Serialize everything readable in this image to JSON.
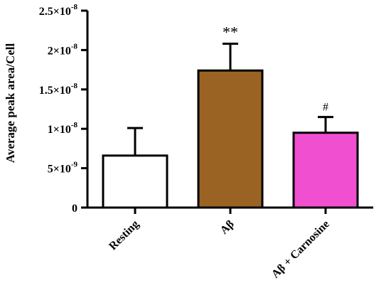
{
  "chart_data": {
    "type": "bar",
    "title": "",
    "xlabel": "",
    "ylabel": "Average peak area/Cell",
    "ylim": [
      0,
      2.5e-08
    ],
    "yticks": [
      {
        "value": 0,
        "mantissa": "0",
        "exponent": ""
      },
      {
        "value": 5e-09,
        "mantissa": "5×10",
        "exponent": "-9"
      },
      {
        "value": 1e-08,
        "mantissa": "1×10",
        "exponent": "-8"
      },
      {
        "value": 1.5e-08,
        "mantissa": "1.5×10",
        "exponent": "-8"
      },
      {
        "value": 2e-08,
        "mantissa": "2×10",
        "exponent": "-8"
      },
      {
        "value": 2.5e-08,
        "mantissa": "2.5×10",
        "exponent": "-8"
      }
    ],
    "categories": [
      "Resting",
      "Aβ",
      "Aβ + Carnosine"
    ],
    "values": [
      6.6e-09,
      1.74e-08,
      9.5e-09
    ],
    "errors": [
      3.5e-09,
      3.4e-09,
      2e-09
    ],
    "bar_colors": [
      "#ffffff",
      "#9a6324",
      "#f04fd0"
    ],
    "significance": [
      "",
      "**",
      "#"
    ]
  }
}
